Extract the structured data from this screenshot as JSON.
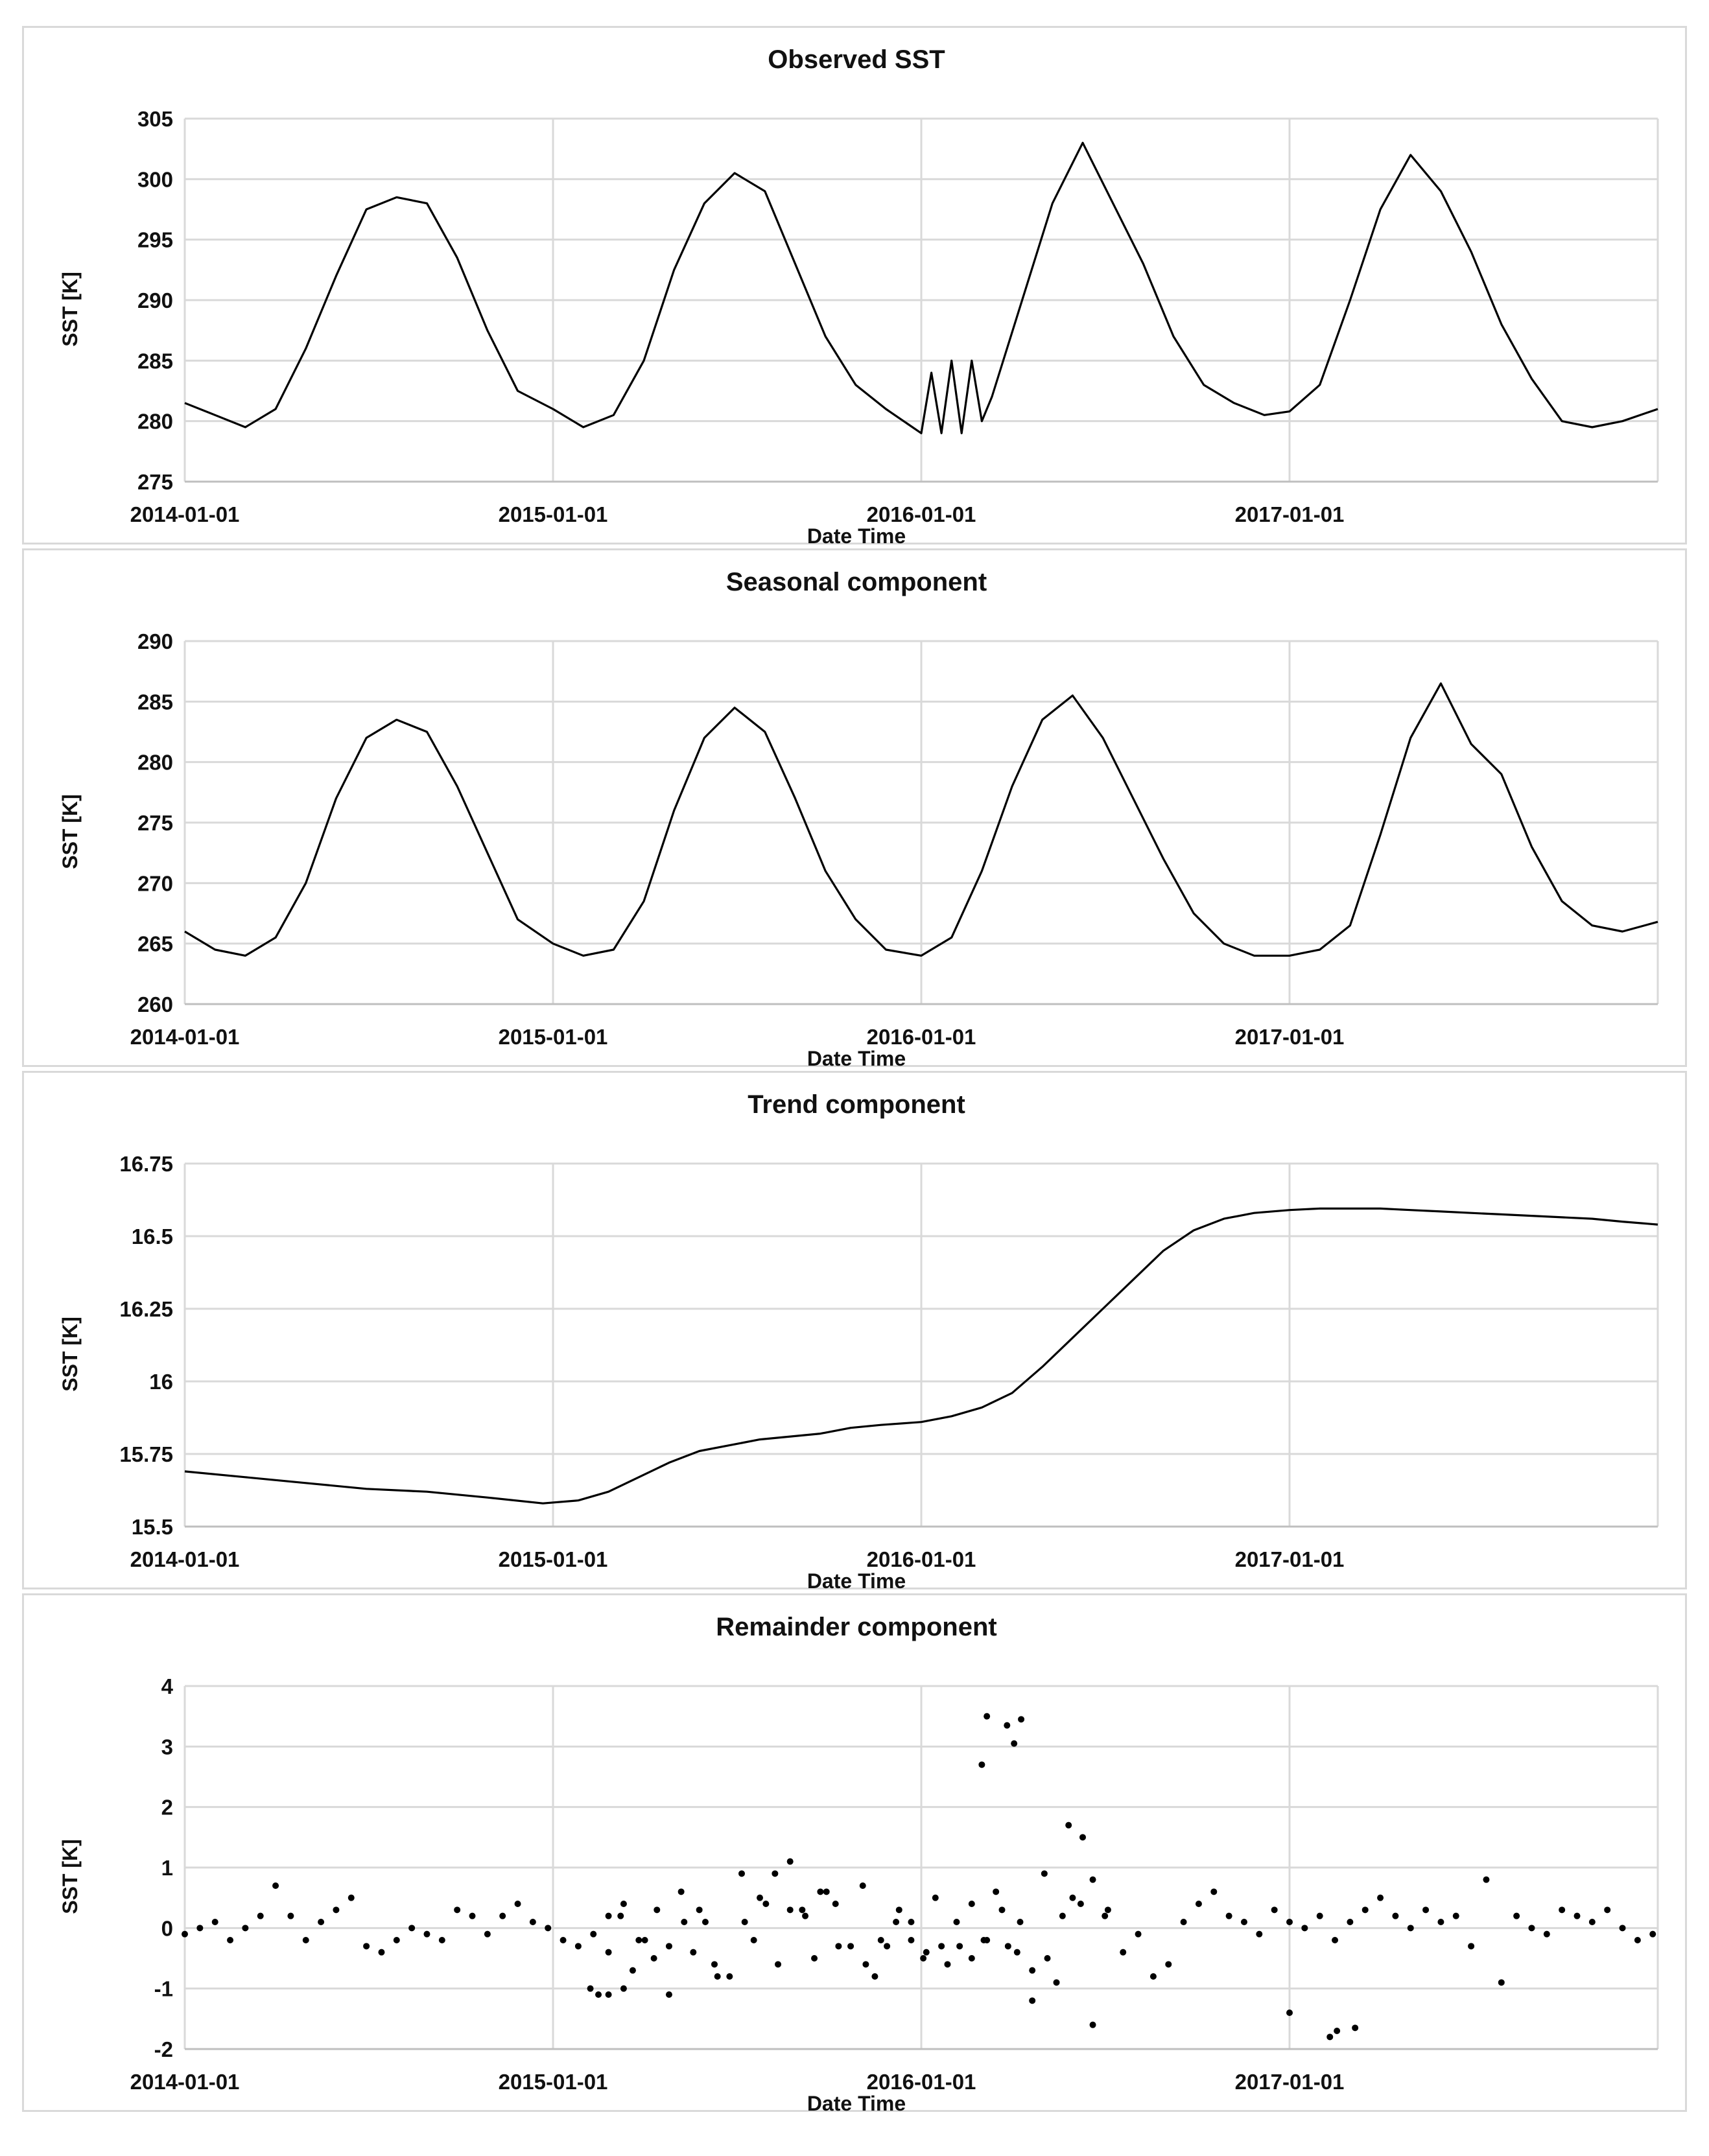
{
  "chart_data": [
    {
      "type": "line",
      "title": "Observed SST",
      "xlabel": "Date Time",
      "ylabel": "SST [K]",
      "x_range": [
        "2014-01-01",
        "2017-12-31"
      ],
      "x_ticks": [
        "2014-01-01",
        "2015-01-01",
        "2016-01-01",
        "2017-01-01"
      ],
      "ylim": [
        275,
        305
      ],
      "y_ticks": [
        "275",
        "280",
        "285",
        "290",
        "295",
        "300",
        "305"
      ],
      "grid": true,
      "series": [
        {
          "name": "Observed SST",
          "x_days": [
            0,
            30,
            60,
            90,
            120,
            150,
            180,
            210,
            240,
            270,
            300,
            330,
            365,
            395,
            425,
            455,
            485,
            515,
            545,
            575,
            605,
            635,
            665,
            695,
            730,
            740,
            750,
            760,
            770,
            780,
            790,
            800,
            830,
            860,
            890,
            920,
            950,
            980,
            1010,
            1040,
            1070,
            1095,
            1125,
            1155,
            1185,
            1215,
            1245,
            1275,
            1305,
            1335,
            1365,
            1395,
            1425,
            1460
          ],
          "values": [
            281.5,
            280.5,
            279.5,
            281,
            286,
            292,
            297.5,
            298.5,
            298,
            293.5,
            287.5,
            282.5,
            281,
            279.5,
            280.5,
            285,
            292.5,
            298,
            300.5,
            299,
            293,
            287,
            283,
            281,
            279,
            284,
            279,
            285,
            279,
            285,
            280,
            282,
            290,
            298,
            303,
            298,
            293,
            287,
            283,
            281.5,
            280.5,
            280.8,
            283,
            290,
            297.5,
            302,
            299,
            294,
            288,
            283.5,
            280,
            279.5,
            280,
            281
          ]
        }
      ]
    },
    {
      "type": "line",
      "title": "Seasonal component",
      "xlabel": "Date Time",
      "ylabel": "SST [K]",
      "x_range": [
        "2014-01-01",
        "2017-12-31"
      ],
      "x_ticks": [
        "2014-01-01",
        "2015-01-01",
        "2016-01-01",
        "2017-01-01"
      ],
      "ylim": [
        260,
        290
      ],
      "y_ticks": [
        "260",
        "265",
        "270",
        "275",
        "280",
        "285",
        "290"
      ],
      "grid": true,
      "series": [
        {
          "name": "Seasonal",
          "x_days": [
            0,
            30,
            60,
            90,
            120,
            150,
            180,
            210,
            240,
            270,
            300,
            330,
            365,
            395,
            425,
            455,
            485,
            515,
            545,
            575,
            605,
            635,
            665,
            695,
            730,
            760,
            790,
            820,
            850,
            880,
            910,
            940,
            970,
            1000,
            1030,
            1060,
            1095,
            1125,
            1155,
            1185,
            1215,
            1245,
            1275,
            1305,
            1335,
            1365,
            1395,
            1425,
            1460
          ],
          "values": [
            266,
            264.5,
            264,
            265.5,
            270,
            277,
            282,
            283.5,
            282.5,
            278,
            272.5,
            267,
            265,
            264,
            264.5,
            268.5,
            276,
            282,
            284.5,
            282.5,
            277,
            271,
            267,
            264.5,
            264,
            265.5,
            271,
            278,
            283.5,
            285.5,
            282,
            277,
            272,
            267.5,
            265,
            264,
            264,
            264.5,
            266.5,
            274,
            282,
            286.5,
            281.5,
            279,
            273,
            268.5,
            266.5,
            266,
            266.8
          ]
        }
      ]
    },
    {
      "type": "line",
      "title": "Trend component",
      "xlabel": "Date Time",
      "ylabel": "SST [K]",
      "x_range": [
        "2014-01-01",
        "2017-12-31"
      ],
      "x_ticks": [
        "2014-01-01",
        "2015-01-01",
        "2016-01-01",
        "2017-01-01"
      ],
      "ylim": [
        15.5,
        16.75
      ],
      "y_ticks": [
        "15.5",
        "15.75",
        "16",
        "16.25",
        "16.5",
        "16.75"
      ],
      "grid": true,
      "series": [
        {
          "name": "Trend",
          "x_days": [
            0,
            60,
            120,
            180,
            240,
            300,
            355,
            390,
            420,
            450,
            480,
            510,
            540,
            570,
            600,
            630,
            660,
            690,
            730,
            760,
            790,
            820,
            850,
            880,
            910,
            940,
            970,
            1000,
            1030,
            1060,
            1095,
            1125,
            1155,
            1185,
            1215,
            1245,
            1275,
            1305,
            1335,
            1365,
            1395,
            1425,
            1460
          ],
          "values": [
            15.69,
            15.67,
            15.65,
            15.63,
            15.62,
            15.6,
            15.58,
            15.59,
            15.62,
            15.67,
            15.72,
            15.76,
            15.78,
            15.8,
            15.81,
            15.82,
            15.84,
            15.85,
            15.86,
            15.88,
            15.91,
            15.96,
            16.05,
            16.15,
            16.25,
            16.35,
            16.45,
            16.52,
            16.56,
            16.58,
            16.59,
            16.595,
            16.595,
            16.595,
            16.59,
            16.585,
            16.58,
            16.575,
            16.57,
            16.565,
            16.56,
            16.55,
            16.54
          ]
        }
      ]
    },
    {
      "type": "scatter",
      "title": "Remainder component",
      "xlabel": "Date Time",
      "ylabel": "SST [K]",
      "x_range": [
        "2014-01-01",
        "2017-12-31"
      ],
      "x_ticks": [
        "2014-01-01",
        "2015-01-01",
        "2016-01-01",
        "2017-01-01"
      ],
      "ylim": [
        -2,
        4
      ],
      "y_ticks": [
        "-2",
        "-1",
        "0",
        "1",
        "2",
        "3",
        "4"
      ],
      "grid": true,
      "series": [
        {
          "name": "Remainder",
          "x_days": [
            0,
            15,
            30,
            45,
            60,
            75,
            90,
            105,
            120,
            135,
            150,
            165,
            180,
            195,
            210,
            225,
            240,
            255,
            270,
            285,
            300,
            315,
            330,
            345,
            360,
            375,
            390,
            405,
            420,
            435,
            450,
            465,
            480,
            495,
            510,
            525,
            540,
            555,
            570,
            585,
            600,
            615,
            630,
            645,
            660,
            675,
            690,
            705,
            720,
            735,
            750,
            765,
            780,
            795,
            810,
            825,
            840,
            855,
            870,
            880,
            890,
            900,
            915,
            930,
            945,
            960,
            975,
            990,
            1005,
            1020,
            1035,
            1050,
            1065,
            1080,
            1095,
            1110,
            1125,
            1140,
            1155,
            1170,
            1185,
            1200,
            1215,
            1230,
            1245,
            1260,
            1275,
            1290,
            1305,
            1320,
            1335,
            1350,
            1365,
            1380,
            1395,
            1410,
            1425,
            1440,
            1455,
            420,
            432,
            444,
            456,
            468,
            480,
            492,
            504,
            516,
            528,
            552,
            564,
            576,
            588,
            600,
            612,
            624,
            636,
            648,
            672,
            684,
            696,
            708,
            720,
            732,
            744,
            756,
            768,
            780,
            792,
            804,
            816,
            828,
            840,
            852,
            864,
            876,
            888,
            900,
            912
          ],
          "values": [
            -0.1,
            0,
            0.1,
            -0.2,
            0,
            0.2,
            0.7,
            0.2,
            -0.2,
            0.1,
            0.3,
            0.5,
            -0.3,
            -0.4,
            -0.2,
            0,
            -0.1,
            -0.2,
            0.3,
            0.2,
            -0.1,
            0.2,
            0.4,
            0.1,
            0,
            -0.2,
            -0.3,
            -0.1,
            0.2,
            0.4,
            -0.2,
            -0.5,
            -0.3,
            0.1,
            0.3,
            -0.6,
            -0.8,
            0.1,
            0.5,
            0.9,
            0.3,
            0.2,
            0.6,
            0.4,
            -0.3,
            -0.6,
            -0.2,
            0.1,
            -0.2,
            -0.4,
            -0.3,
            0.1,
            -0.5,
            -0.2,
            0.3,
            -0.4,
            -1.2,
            -0.5,
            0.2,
            0.5,
            1.5,
            0.8,
            0.3,
            -0.4,
            -0.1,
            -0.8,
            -0.6,
            0.1,
            0.4,
            0.6,
            0.2,
            0.1,
            -0.1,
            0.3,
            0.1,
            0,
            0.2,
            -0.2,
            0.1,
            0.3,
            0.5,
            0.2,
            0,
            0.3,
            0.1,
            0.2,
            -0.3,
            0.8,
            -0.9,
            0.2,
            0,
            -0.1,
            0.3,
            0.2,
            0.1,
            0.3,
            0,
            -0.2,
            -0.1,
            -0.4,
            0.2,
            -0.7,
            -0.2,
            0.3,
            -1.1,
            0.6,
            -0.4,
            0.1,
            -0.8,
            0.9,
            -0.2,
            0.4,
            -0.6,
            1.1,
            0.3,
            -0.5,
            0.6,
            -0.3,
            0.7,
            -0.8,
            -0.3,
            0.3,
            0.1,
            -0.5,
            0.5,
            -0.6,
            -0.3,
            0.4,
            -0.2,
            0.6,
            -0.3,
            0.1,
            -0.7,
            0.9,
            -0.9,
            1.7,
            0.4,
            -1.6,
            0.2
          ],
          "outliers": {
            "x_days": [
              402,
              410,
              420,
              435,
              790,
              795,
              815,
              822,
              829,
              1095,
              1135,
              1142,
              1160
            ],
            "values": [
              -1,
              -1.1,
              -1.1,
              -1,
              2.7,
              3.5,
              3.35,
              3.05,
              3.45,
              -1.4,
              -1.8,
              -1.7,
              -1.65
            ]
          }
        }
      ]
    }
  ]
}
